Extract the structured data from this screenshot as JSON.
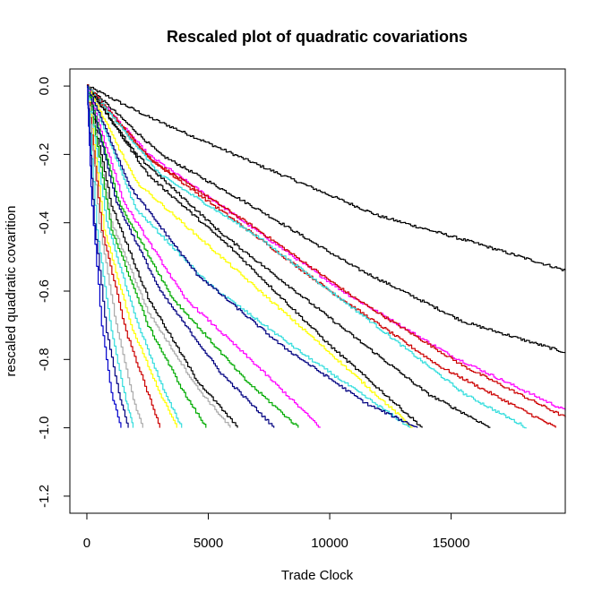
{
  "chart_data": {
    "type": "line",
    "title": "Rescaled plot of quadratic covariations",
    "xlabel": "Trade Clock",
    "ylabel": "rescaled quadratic covarition",
    "xlim": [
      -700,
      19700
    ],
    "ylim": [
      -1.25,
      0.05
    ],
    "x_ticks": [
      0,
      5000,
      10000,
      15000
    ],
    "x_tick_labels": [
      "0",
      "5000",
      "10000",
      "15000"
    ],
    "y_ticks": [
      0.0,
      -0.2,
      -0.4,
      -0.6,
      -0.8,
      -1.0,
      -1.2
    ],
    "y_tick_labels": [
      "0.0",
      "-0.2",
      "-0.4",
      "-0.6",
      "-0.8",
      "-1.0",
      "-1.2"
    ],
    "grid": false,
    "series": [
      {
        "name": "path-01",
        "color": "#000000",
        "x": [
          0,
          2500,
          7000,
          12000,
          16000,
          19700
        ],
        "y": [
          0.0,
          -0.09,
          -0.23,
          -0.38,
          -0.46,
          -0.54
        ]
      },
      {
        "name": "path-02",
        "color": "#000000",
        "x": [
          0,
          3000,
          7000,
          11000,
          15500,
          19700
        ],
        "y": [
          0.0,
          -0.2,
          -0.36,
          -0.53,
          -0.69,
          -0.78
        ]
      },
      {
        "name": "path-03",
        "color": "#ff00ff",
        "x": [
          0,
          2500,
          6500,
          10500,
          15000,
          19700
        ],
        "y": [
          0.0,
          -0.2,
          -0.4,
          -0.6,
          -0.79,
          -0.95
        ]
      },
      {
        "name": "path-04",
        "color": "#cc0000",
        "x": [
          0,
          2700,
          6800,
          11000,
          15500,
          19700
        ],
        "y": [
          0.0,
          -0.22,
          -0.41,
          -0.62,
          -0.82,
          -0.97
        ]
      },
      {
        "name": "path-05",
        "color": "#cc0000",
        "x": [
          0,
          2500,
          6000,
          10000,
          14500,
          19300
        ],
        "y": [
          0.0,
          -0.21,
          -0.39,
          -0.6,
          -0.82,
          -1.0
        ]
      },
      {
        "name": "path-06",
        "color": "#33dddd",
        "x": [
          0,
          3000,
          7000,
          11500,
          15500,
          18100
        ],
        "y": [
          0.0,
          -0.26,
          -0.44,
          -0.68,
          -0.9,
          -1.0
        ]
      },
      {
        "name": "path-07",
        "color": "#000000",
        "x": [
          0,
          2000,
          5500,
          10000,
          14000,
          16600
        ],
        "y": [
          0.0,
          -0.2,
          -0.43,
          -0.68,
          -0.9,
          -1.0
        ]
      },
      {
        "name": "path-08",
        "color": "#000000",
        "x": [
          0,
          2500,
          6000,
          10000,
          13800
        ],
        "y": [
          0.0,
          -0.26,
          -0.48,
          -0.76,
          -1.0
        ]
      },
      {
        "name": "path-09",
        "color": "#ffff00",
        "x": [
          0,
          2000,
          5500,
          9500,
          13400
        ],
        "y": [
          0.0,
          -0.28,
          -0.5,
          -0.75,
          -1.0
        ]
      },
      {
        "name": "path-10",
        "color": "#33dddd",
        "x": [
          0,
          2000,
          5000,
          9000,
          13300
        ],
        "y": [
          0.0,
          -0.36,
          -0.58,
          -0.79,
          -1.0
        ]
      },
      {
        "name": "path-11",
        "color": "#000080",
        "x": [
          0,
          1800,
          4500,
          8000,
          11500,
          13600
        ],
        "y": [
          0.0,
          -0.3,
          -0.55,
          -0.76,
          -0.93,
          -1.0
        ]
      },
      {
        "name": "path-12",
        "color": "#ff00ff",
        "x": [
          0,
          1500,
          4000,
          7000,
          9600
        ],
        "y": [
          0.0,
          -0.34,
          -0.62,
          -0.82,
          -1.0
        ]
      },
      {
        "name": "path-13",
        "color": "#00aa00",
        "x": [
          0,
          1300,
          3500,
          6500,
          8700
        ],
        "y": [
          0.0,
          -0.34,
          -0.62,
          -0.86,
          -1.0
        ]
      },
      {
        "name": "path-14",
        "color": "#000080",
        "x": [
          0,
          1200,
          3000,
          5500,
          7700
        ],
        "y": [
          0.0,
          -0.34,
          -0.6,
          -0.84,
          -1.0
        ]
      },
      {
        "name": "path-15",
        "color": "#000000",
        "x": [
          0,
          1000,
          2500,
          4500,
          6200
        ],
        "y": [
          0.0,
          -0.35,
          -0.62,
          -0.86,
          -1.0
        ]
      },
      {
        "name": "path-16",
        "color": "#aaaaaa",
        "x": [
          0,
          1000,
          2500,
          4500,
          5900
        ],
        "y": [
          0.0,
          -0.4,
          -0.66,
          -0.88,
          -1.0
        ]
      },
      {
        "name": "path-17",
        "color": "#00aa00",
        "x": [
          0,
          1000,
          2500,
          4000,
          4900
        ],
        "y": [
          0.0,
          -0.42,
          -0.7,
          -0.9,
          -1.0
        ]
      },
      {
        "name": "path-18",
        "color": "#33dddd",
        "x": [
          0,
          800,
          2000,
          3200,
          3900
        ],
        "y": [
          0.0,
          -0.4,
          -0.68,
          -0.9,
          -1.0
        ]
      },
      {
        "name": "path-19",
        "color": "#ffff00",
        "x": [
          0,
          700,
          1800,
          3000,
          3700
        ],
        "y": [
          0.0,
          -0.42,
          -0.7,
          -0.9,
          -1.0
        ]
      },
      {
        "name": "path-20",
        "color": "#cc0000",
        "x": [
          0,
          600,
          1600,
          2600,
          3000
        ],
        "y": [
          0.0,
          -0.42,
          -0.72,
          -0.92,
          -1.0
        ]
      },
      {
        "name": "path-21",
        "color": "#aaaaaa",
        "x": [
          0,
          500,
          1200,
          1900,
          2300
        ],
        "y": [
          0.0,
          -0.4,
          -0.7,
          -0.92,
          -1.0
        ]
      },
      {
        "name": "path-22",
        "color": "#33dddd",
        "x": [
          0,
          400,
          1000,
          1600,
          1900
        ],
        "y": [
          0.0,
          -0.42,
          -0.72,
          -0.92,
          -1.0
        ]
      },
      {
        "name": "path-23",
        "color": "#000080",
        "x": [
          0,
          300,
          800,
          1300,
          1700
        ],
        "y": [
          0.0,
          -0.4,
          -0.72,
          -0.9,
          -1.0
        ]
      },
      {
        "name": "path-24",
        "color": "#0000cc",
        "x": [
          0,
          200,
          600,
          1000,
          1400
        ],
        "y": [
          0.0,
          -0.35,
          -0.7,
          -0.9,
          -1.0
        ]
      }
    ]
  }
}
